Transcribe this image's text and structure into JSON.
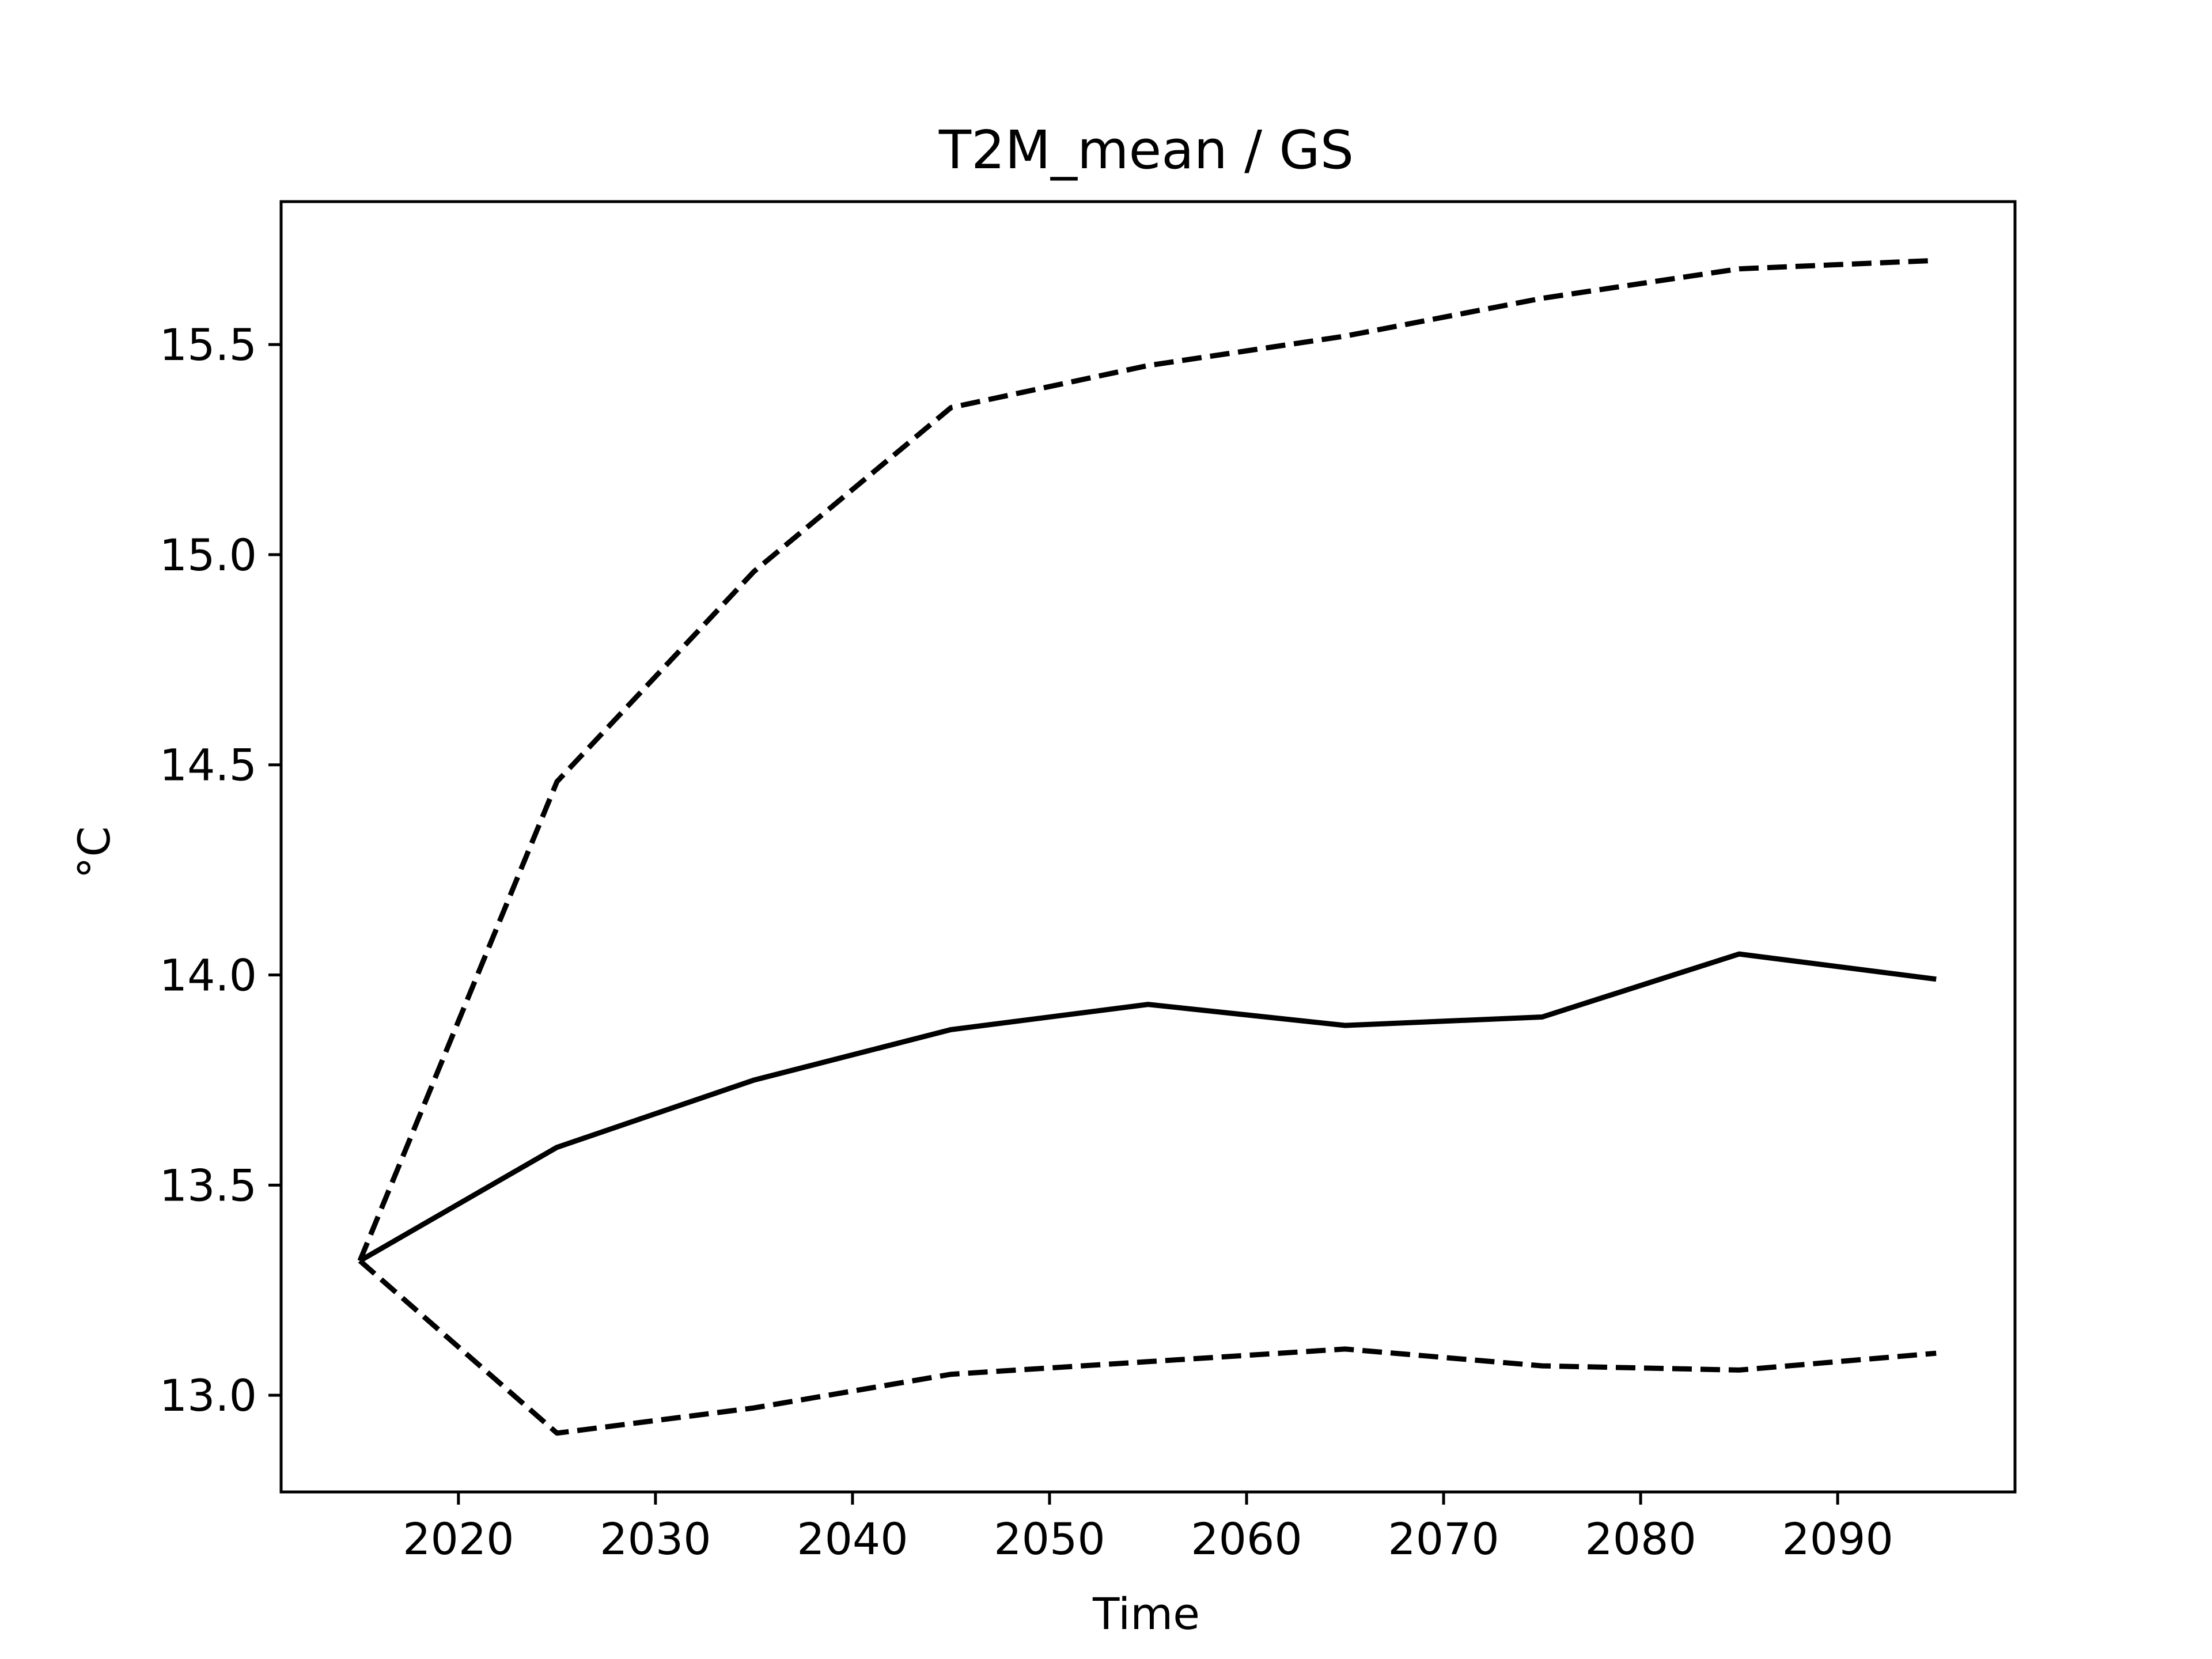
{
  "chart_data": {
    "type": "line",
    "title": "T2M_mean / GS",
    "xlabel": "Time",
    "ylabel": "°C",
    "xlim": [
      2011,
      2099
    ],
    "ylim": [
      12.77,
      15.84
    ],
    "x_ticks": [
      2020,
      2030,
      2040,
      2050,
      2060,
      2070,
      2080,
      2090
    ],
    "x_tick_labels": [
      "2020",
      "2030",
      "2040",
      "2050",
      "2060",
      "2070",
      "2080",
      "2090"
    ],
    "y_ticks": [
      13.0,
      13.5,
      14.0,
      14.5,
      15.0,
      15.5
    ],
    "y_tick_labels": [
      "13.0",
      "13.5",
      "14.0",
      "14.5",
      "15.0",
      "15.5"
    ],
    "grid": false,
    "legend": "none",
    "x": [
      2015,
      2025,
      2035,
      2045,
      2055,
      2065,
      2075,
      2085,
      2095
    ],
    "series": [
      {
        "style": "dashed",
        "color": "#000000",
        "values": [
          13.32,
          14.46,
          14.96,
          15.35,
          15.45,
          15.52,
          15.61,
          15.68,
          15.7
        ]
      },
      {
        "style": "solid",
        "color": "#000000",
        "values": [
          13.32,
          13.59,
          13.75,
          13.87,
          13.93,
          13.88,
          13.9,
          14.05,
          13.99
        ]
      },
      {
        "style": "dashed",
        "color": "#000000",
        "values": [
          13.32,
          12.91,
          12.97,
          13.05,
          13.08,
          13.11,
          13.07,
          13.06,
          13.1
        ]
      }
    ]
  }
}
